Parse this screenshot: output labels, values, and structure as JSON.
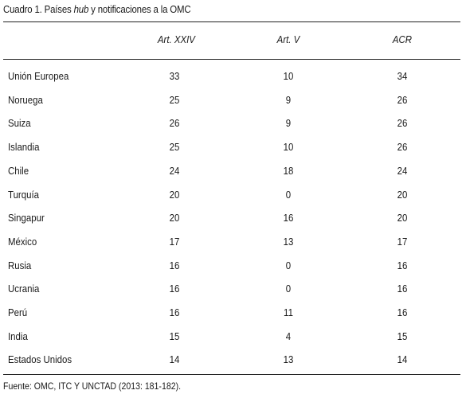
{
  "title": {
    "prefix": "Cuadro 1. Países ",
    "italic": "hub",
    "suffix": " y notificaciones a la OMC"
  },
  "columns": [
    "Art. XXIV",
    "Art. V",
    "ACR"
  ],
  "rows": [
    {
      "country": "Unión Europea",
      "art24": "33",
      "art5": "10",
      "acr": "34"
    },
    {
      "country": "Noruega",
      "art24": "25",
      "art5": "9",
      "acr": "26"
    },
    {
      "country": "Suiza",
      "art24": "26",
      "art5": "9",
      "acr": "26"
    },
    {
      "country": "Islandia",
      "art24": "25",
      "art5": "10",
      "acr": "26"
    },
    {
      "country": "Chile",
      "art24": "24",
      "art5": "18",
      "acr": "24"
    },
    {
      "country": "Turquía",
      "art24": "20",
      "art5": "0",
      "acr": "20"
    },
    {
      "country": "Singapur",
      "art24": "20",
      "art5": "16",
      "acr": "20"
    },
    {
      "country": "México",
      "art24": "17",
      "art5": "13",
      "acr": "17"
    },
    {
      "country": "Rusia",
      "art24": "16",
      "art5": "0",
      "acr": "16"
    },
    {
      "country": "Ucrania",
      "art24": "16",
      "art5": "0",
      "acr": "16"
    },
    {
      "country": "Perú",
      "art24": "16",
      "art5": "11",
      "acr": "16"
    },
    {
      "country": "India",
      "art24": "15",
      "art5": "4",
      "acr": "15"
    },
    {
      "country": "Estados Unidos",
      "art24": "14",
      "art5": "13",
      "acr": "14"
    }
  ],
  "source": "Fuente: OMC, ITC Y UNCTAD (2013: 181-182)."
}
